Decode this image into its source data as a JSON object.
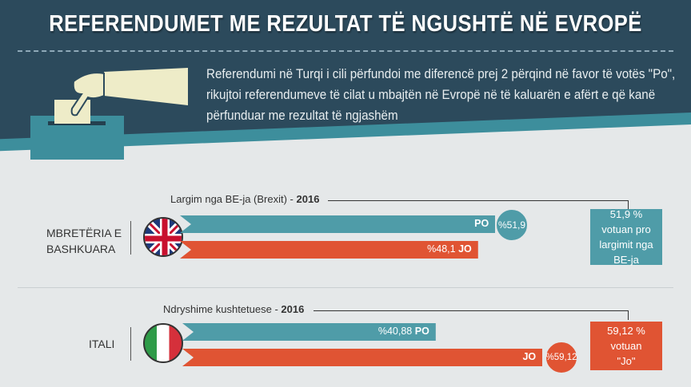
{
  "header": {
    "title": "REFERENDUMET ME REZULTAT TË NGUSHTË NË EVROPË",
    "intro": "Referendumi në Turqi i cili përfundoi me diferencë prej 2 përqind në favor të votës \"Po\", rikujtoi referendumeve të cilat u mbajtën në Evropë në të kaluarën e afërt e që kanë përfunduar me rezultat të ngjashëm"
  },
  "colors": {
    "po": "#4f9ca8",
    "jo": "#e05433",
    "header": "#2c4a5c"
  },
  "chart_data": [
    {
      "type": "bar",
      "country": "MBRETËRIA E BASHKUARA",
      "title": "Largim nga BE-ja (Brexit) - ",
      "year": "2016",
      "series": [
        {
          "name": "PO",
          "value": 51.9,
          "label": "%51,9",
          "winner": true
        },
        {
          "name": "JO",
          "value": 48.1,
          "label": "%48,1",
          "winner": false
        }
      ],
      "result": "51,9 % votuan pro largimit nga BE-ja"
    },
    {
      "type": "bar",
      "country": "ITALI",
      "title": "Ndryshime kushtetuese - ",
      "year": "2016",
      "series": [
        {
          "name": "PO",
          "value": 40.88,
          "label": "%40,88",
          "winner": false
        },
        {
          "name": "JO",
          "value": 59.12,
          "label": "%59,12",
          "winner": true
        }
      ],
      "result": "59,12 % votuan \"Jo\""
    }
  ]
}
